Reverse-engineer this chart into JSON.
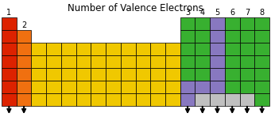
{
  "title": "Number of Valence Electrons",
  "bg_color": "#ffffff",
  "col1_color": "#dd2200",
  "col2_color": "#f07010",
  "yellow_color": "#f0c800",
  "green_color": "#38b030",
  "purple_color": "#8878c0",
  "gray_color": "#c0c0c0",
  "grid_color": "#000000",
  "arrow_color": "#000000",
  "ncols": 18,
  "nrows": 7,
  "col1_rows": [
    0,
    1,
    2,
    3,
    4,
    5,
    6
  ],
  "col2_rows": [
    1,
    2,
    3,
    4,
    5,
    6
  ],
  "yellow_cols": [
    2,
    3,
    4,
    5,
    6,
    7,
    8,
    9,
    10,
    11
  ],
  "yellow_rows": [
    2,
    3,
    4,
    5,
    6
  ],
  "group3_col": 12,
  "group3_green_rows": [
    0,
    1,
    2,
    3,
    4
  ],
  "group3_purple_rows": [
    5,
    6
  ],
  "group4_col": 13,
  "group4_green_rows": [
    0,
    1,
    2,
    3,
    4
  ],
  "group4_purple_rows": [
    5
  ],
  "group4_gray_rows": [
    6
  ],
  "group5_col": 14,
  "group5_purple_rows": [
    0,
    1,
    2,
    3,
    4,
    5
  ],
  "group5_gray_rows": [
    6
  ],
  "group6_col": 15,
  "group6_green_rows": [
    0,
    1,
    2,
    3,
    4,
    5
  ],
  "group6_gray_rows": [
    6
  ],
  "group7_col": 16,
  "group7_green_rows": [
    0,
    1,
    2,
    3,
    4,
    5
  ],
  "group7_gray_rows": [
    6
  ],
  "group8_col": 17,
  "group8_green_rows": [
    0,
    1,
    2,
    3,
    4,
    5,
    6
  ],
  "title_fontsize": 8.5,
  "label_fontsize": 7.0
}
